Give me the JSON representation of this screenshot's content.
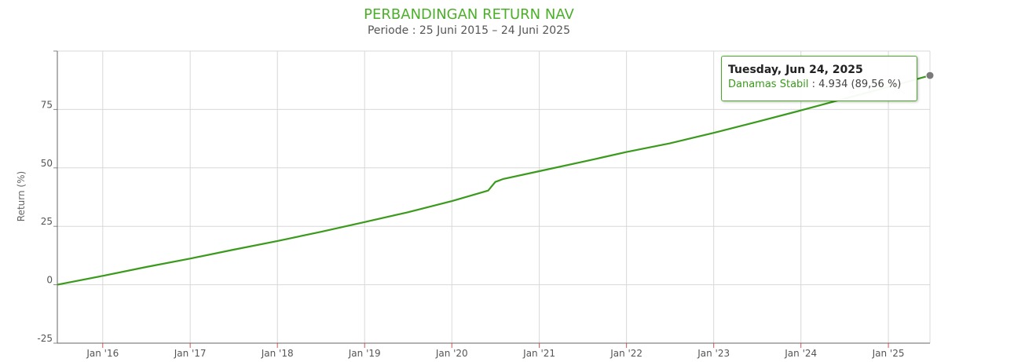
{
  "chart_data": {
    "type": "line",
    "title": "PERBANDINGAN RETURN NAV",
    "subtitle": "Periode : 25 Juni 2015 – 24 Juni 2025",
    "ylabel": "Return (%)",
    "xlabel": "",
    "ylim": [
      -25,
      100
    ],
    "yticks": [
      -25,
      0,
      25,
      50,
      75
    ],
    "xlim": [
      "2015-06-25",
      "2025-06-24"
    ],
    "xticks": [
      {
        "date": "2016-01-01",
        "label": "Jan '16"
      },
      {
        "date": "2017-01-01",
        "label": "Jan '17"
      },
      {
        "date": "2018-01-01",
        "label": "Jan '18"
      },
      {
        "date": "2019-01-01",
        "label": "Jan '19"
      },
      {
        "date": "2020-01-01",
        "label": "Jan '20"
      },
      {
        "date": "2021-01-01",
        "label": "Jan '21"
      },
      {
        "date": "2022-01-01",
        "label": "Jan '22"
      },
      {
        "date": "2023-01-01",
        "label": "Jan '23"
      },
      {
        "date": "2024-01-01",
        "label": "Jan '24"
      },
      {
        "date": "2025-01-01",
        "label": "Jan '25"
      }
    ],
    "grid": true,
    "series": [
      {
        "name": "Danamas Stabil",
        "color": "#3a9a1c",
        "x": [
          "2015-06-25",
          "2016-01-01",
          "2016-07-01",
          "2017-01-01",
          "2017-07-01",
          "2018-01-01",
          "2018-07-01",
          "2019-01-01",
          "2019-07-01",
          "2020-01-01",
          "2020-06-01",
          "2020-07-01",
          "2020-08-01",
          "2021-01-01",
          "2021-07-01",
          "2022-01-01",
          "2022-07-01",
          "2023-01-01",
          "2023-07-01",
          "2024-01-01",
          "2024-07-01",
          "2025-01-01",
          "2025-06-24"
        ],
        "y": [
          0.0,
          3.8,
          7.6,
          11.2,
          15.0,
          18.7,
          22.6,
          26.8,
          31.0,
          35.8,
          40.3,
          44.0,
          45.2,
          48.6,
          52.6,
          56.8,
          60.5,
          65.0,
          69.7,
          74.6,
          79.6,
          84.6,
          89.56
        ]
      }
    ],
    "tooltip": {
      "date": "Tuesday, Jun 24, 2025",
      "series": "Danamas Stabil",
      "value": "4.934 (89,56 %)"
    }
  }
}
